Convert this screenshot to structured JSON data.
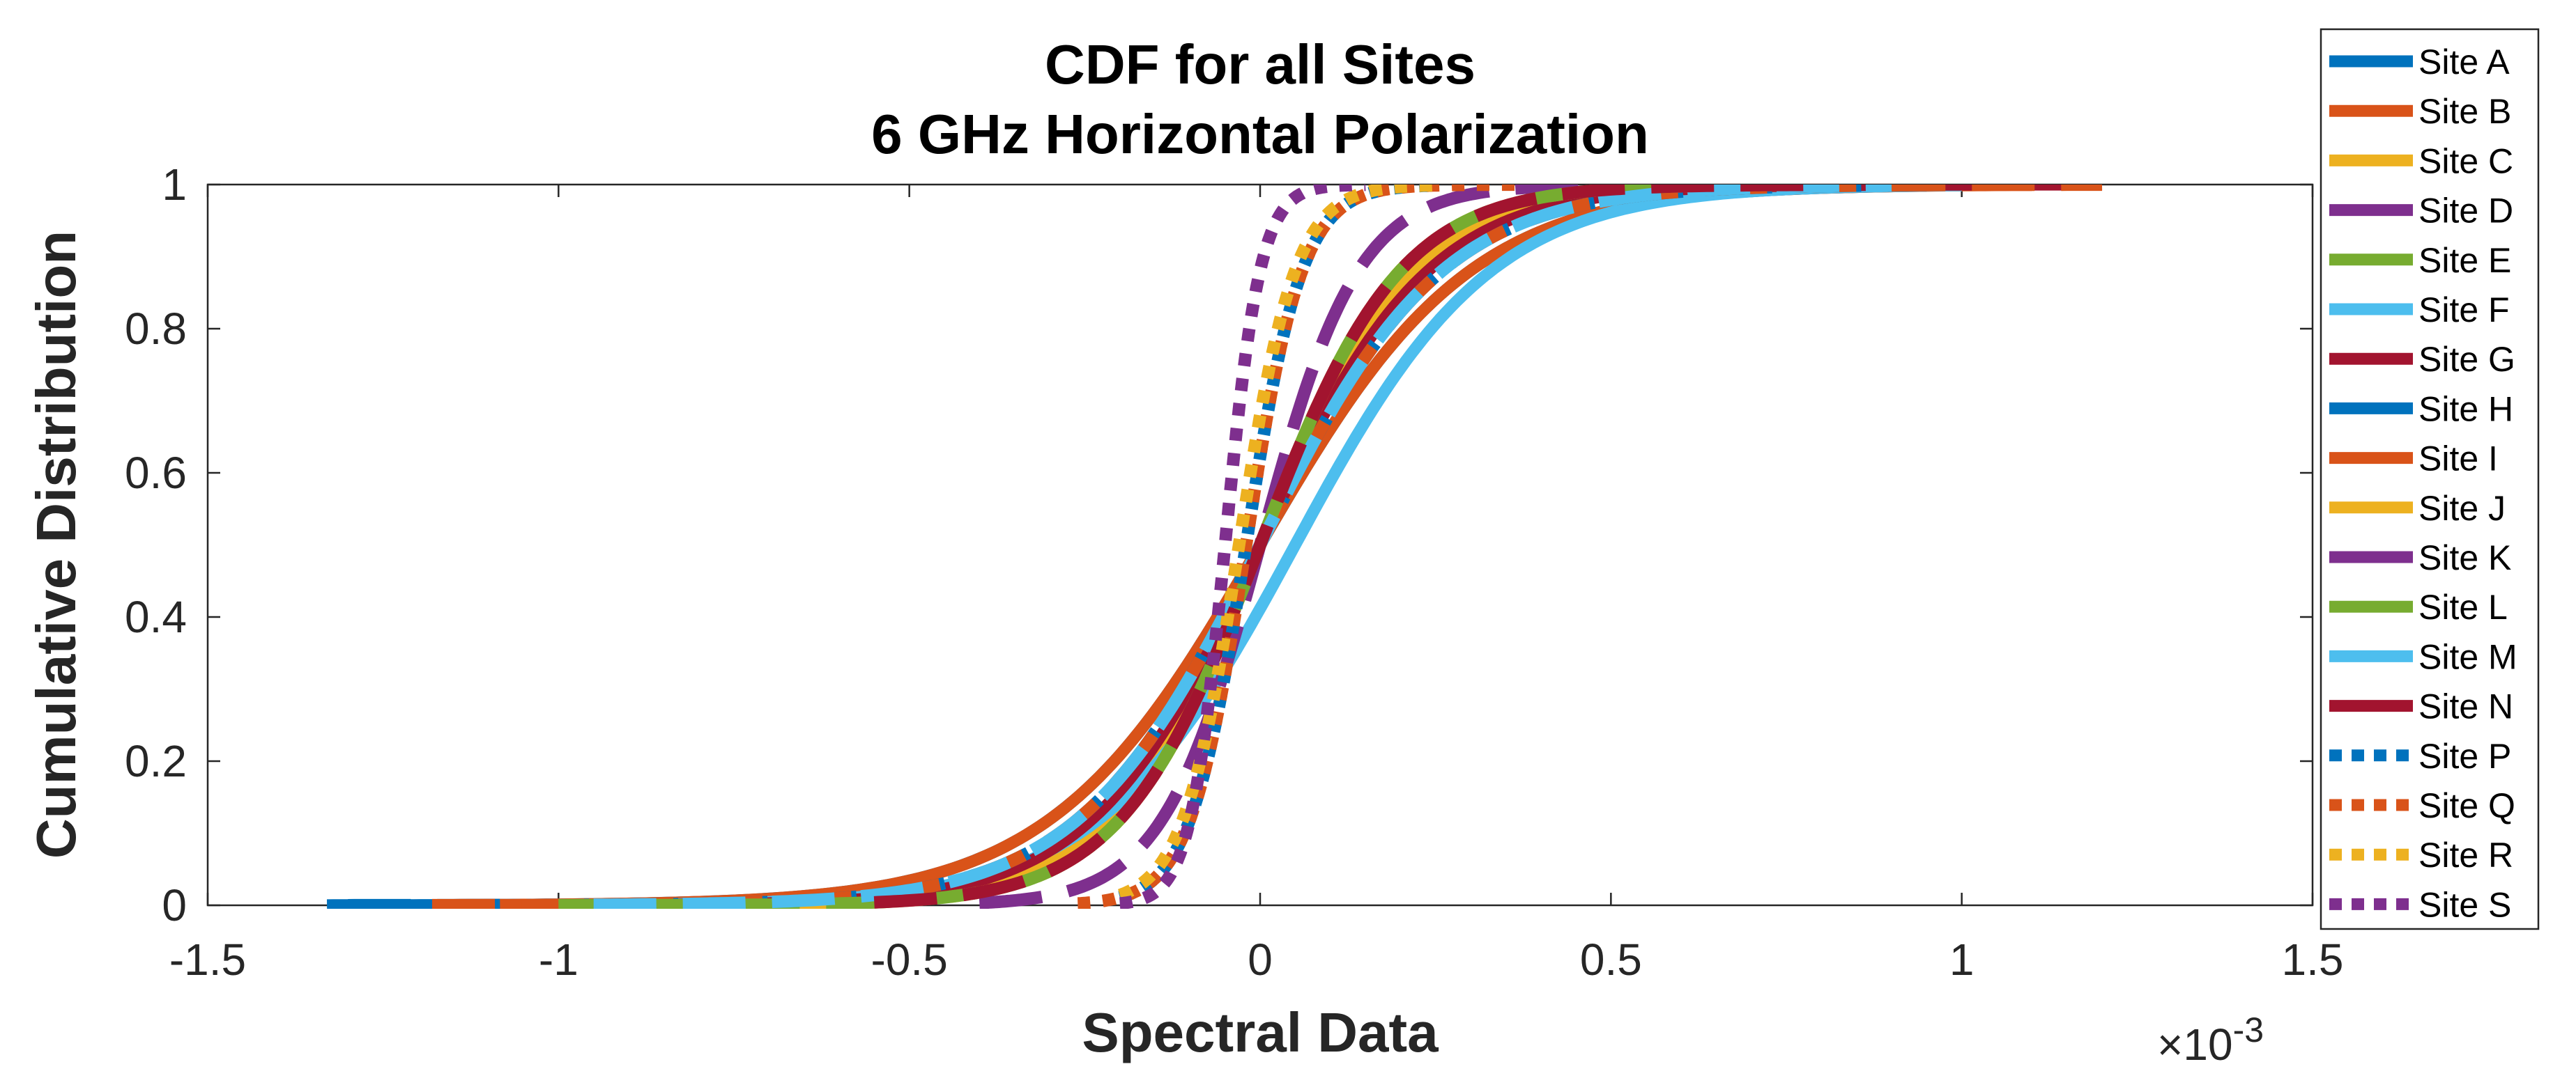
{
  "chart_data": {
    "type": "line",
    "title": [
      "CDF for all Sites",
      "6 GHz Horizontal Polarization"
    ],
    "xlabel": "Spectral Data",
    "ylabel": "Cumulative Distribution",
    "x_exponent": {
      "base": "×10",
      "power": "-3"
    },
    "xlim": [
      -1.5,
      1.5
    ],
    "ylim": [
      0,
      1
    ],
    "xticks": [
      -1.5,
      -1,
      -0.5,
      0,
      0.5,
      1,
      1.5
    ],
    "xtick_labels": [
      "-1.5",
      "-1",
      "-0.5",
      "0",
      "0.5",
      "1",
      "1.5"
    ],
    "yticks": [
      0,
      0.2,
      0.4,
      0.6,
      0.8,
      1
    ],
    "ytick_labels": [
      "0",
      "0.2",
      "0.4",
      "0.6",
      "0.8",
      "1"
    ],
    "grid": false,
    "legend_position": "outside-right",
    "series_note": "Each series is a CDF approximated as a logistic curve: y = 1/(1+exp(-(x-mu)/s)), drawn between x_min and x_max (data units ×10^-3).",
    "series": [
      {
        "name": "Site A",
        "color": "#0072BD",
        "style": "solid",
        "mu": 0.0,
        "s": 0.15,
        "x_min": -1.33,
        "x_max": 0.95
      },
      {
        "name": "Site B",
        "color": "#D95319",
        "style": "solid",
        "mu": 0.0,
        "s": 0.15,
        "x_min": -1.18,
        "x_max": 1.1
      },
      {
        "name": "Site C",
        "color": "#EDB120",
        "style": "solid",
        "mu": 0.0,
        "s": 0.11,
        "x_min": -0.95,
        "x_max": 0.8
      },
      {
        "name": "Site D",
        "color": "#7E2F8E",
        "style": "solid",
        "mu": 0.0,
        "s": 0.1,
        "x_min": -0.9,
        "x_max": 0.75
      },
      {
        "name": "Site E",
        "color": "#77AC30",
        "style": "solid",
        "mu": 0.0,
        "s": 0.1,
        "x_min": -1.0,
        "x_max": 0.75
      },
      {
        "name": "Site F",
        "color": "#4DBEEE",
        "style": "solid",
        "mu": 0.05,
        "s": 0.14,
        "x_min": -0.9,
        "x_max": 1.0
      },
      {
        "name": "Site G",
        "color": "#A2142F",
        "style": "solid",
        "mu": 0.0,
        "s": 0.12,
        "x_min": -1.0,
        "x_max": 1.2
      },
      {
        "name": "Site H",
        "color": "#0072BD",
        "style": "dashed",
        "mu": 0.0,
        "s": 0.13,
        "x_min": -1.3,
        "x_max": 0.95
      },
      {
        "name": "Site I",
        "color": "#D95319",
        "style": "dashed",
        "mu": 0.0,
        "s": 0.13,
        "x_min": -1.18,
        "x_max": 1.2
      },
      {
        "name": "Site J",
        "color": "#EDB120",
        "style": "dashed",
        "mu": 0.0,
        "s": 0.1,
        "x_min": -0.95,
        "x_max": 0.8
      },
      {
        "name": "Site K",
        "color": "#7E2F8E",
        "style": "dashed",
        "mu": 0.0,
        "s": 0.07,
        "x_min": -0.4,
        "x_max": 0.55
      },
      {
        "name": "Site L",
        "color": "#77AC30",
        "style": "dashed",
        "mu": 0.0,
        "s": 0.1,
        "x_min": -1.0,
        "x_max": 0.8
      },
      {
        "name": "Site M",
        "color": "#4DBEEE",
        "style": "dashed",
        "mu": 0.0,
        "s": 0.13,
        "x_min": -0.95,
        "x_max": 0.9
      },
      {
        "name": "Site N",
        "color": "#A2142F",
        "style": "dashed",
        "mu": 0.0,
        "s": 0.1,
        "x_min": -0.55,
        "x_max": 0.8
      },
      {
        "name": "Site P",
        "color": "#0072BD",
        "style": "dotted",
        "mu": -0.02,
        "s": 0.04,
        "x_min": -0.2,
        "x_max": 0.25
      },
      {
        "name": "Site Q",
        "color": "#D95319",
        "style": "dotted",
        "mu": -0.02,
        "s": 0.04,
        "x_min": -0.26,
        "x_max": 0.37
      },
      {
        "name": "Site R",
        "color": "#EDB120",
        "style": "dotted",
        "mu": -0.03,
        "s": 0.04,
        "x_min": -0.2,
        "x_max": 0.25
      },
      {
        "name": "Site S",
        "color": "#7E2F8E",
        "style": "dotted",
        "mu": -0.05,
        "s": 0.025,
        "x_min": -0.2,
        "x_max": 0.15
      }
    ]
  }
}
